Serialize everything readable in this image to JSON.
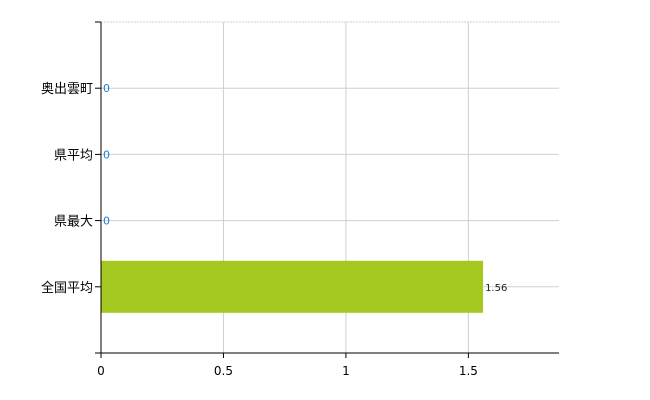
{
  "chart_data": {
    "type": "bar",
    "orientation": "horizontal",
    "categories": [
      "奥出雲町",
      "県平均",
      "県最大",
      "全国平均"
    ],
    "values": [
      0,
      0,
      0,
      1.56
    ],
    "data_labels": [
      "0",
      "0",
      "0",
      "1.56"
    ],
    "xlim": [
      0,
      1.87
    ],
    "x_ticks": [
      "0",
      "0.5",
      "1",
      "1.5"
    ],
    "x_tick_values": [
      0,
      0.5,
      1,
      1.5
    ],
    "grid": true,
    "title": "",
    "xlabel": "",
    "ylabel": "",
    "colors": {
      "bar": "#a4c820",
      "zero_label": "#1a7fd0",
      "label": "#222222",
      "grid": "#d0d0d0"
    }
  }
}
